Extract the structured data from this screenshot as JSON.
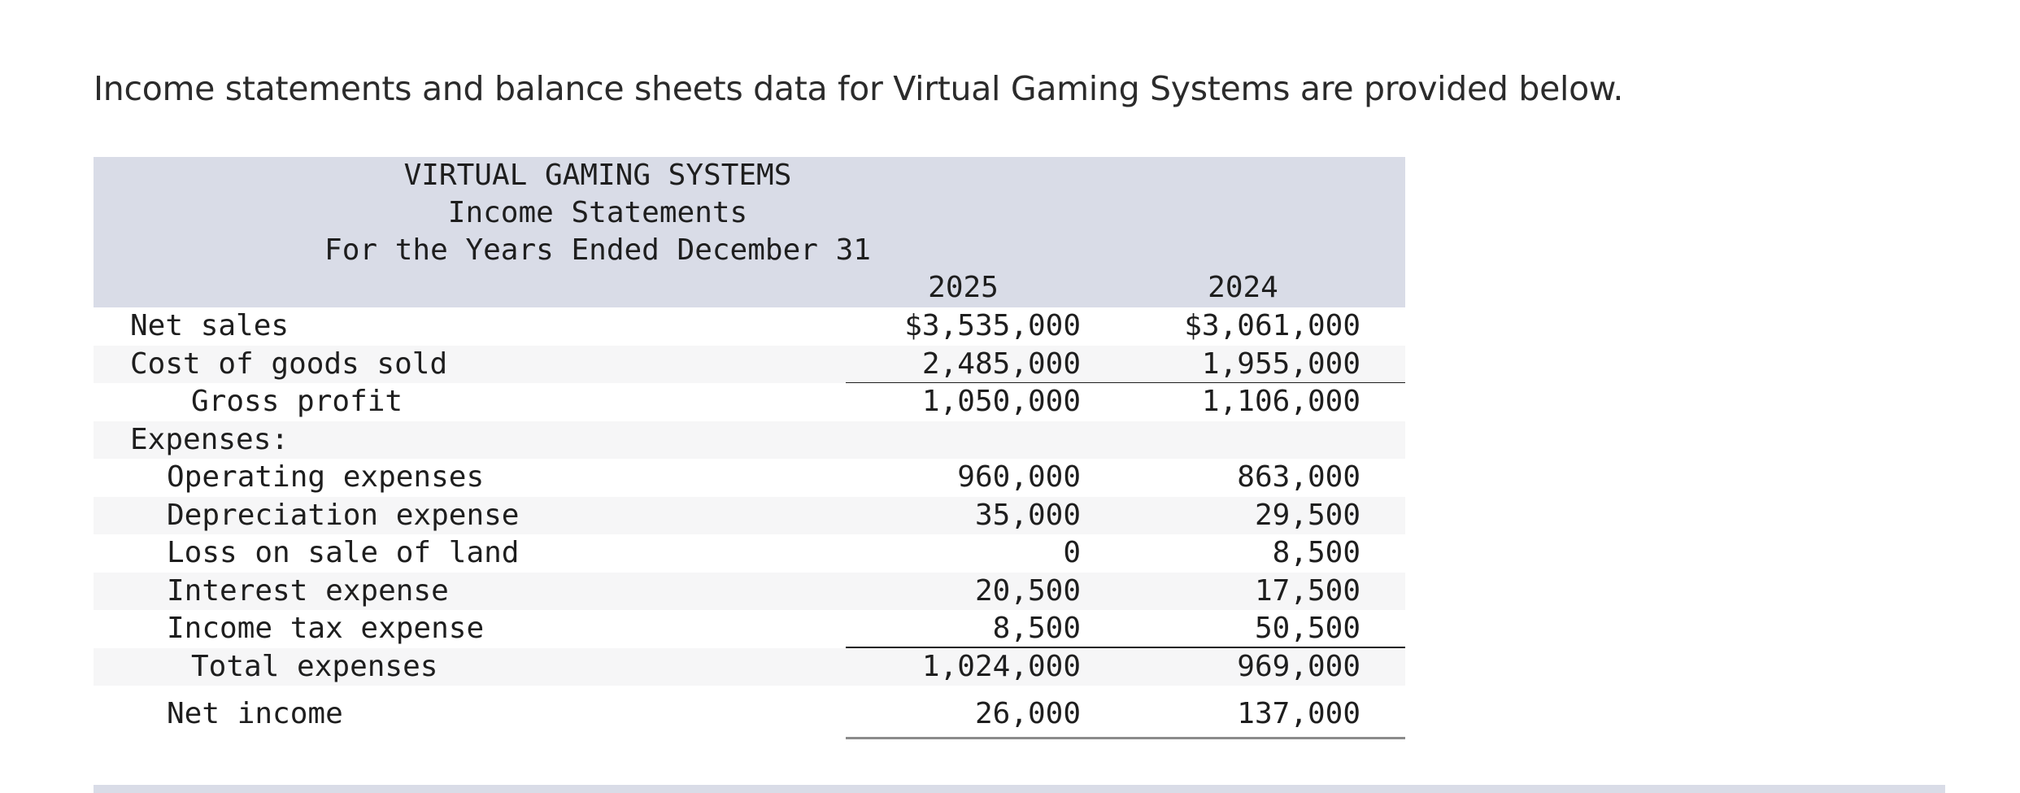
{
  "intro": "Income statements and balance sheets data for Virtual Gaming Systems are provided below.",
  "statement": {
    "company": "VIRTUAL GAMING SYSTEMS",
    "title": "Income Statements",
    "period": "For the Years Ended December 31",
    "years": [
      "2025",
      "2024"
    ],
    "rows": [
      {
        "label": "Net sales",
        "v2025": "$3,535,000",
        "v2024": "$3,061,000"
      },
      {
        "label": "Cost of goods sold",
        "v2025": "2,485,000",
        "v2024": "1,955,000"
      },
      {
        "label": "Gross profit",
        "v2025": "1,050,000",
        "v2024": "1,106,000"
      },
      {
        "label": "Expenses:",
        "v2025": "",
        "v2024": ""
      },
      {
        "label": "Operating expenses",
        "v2025": "960,000",
        "v2024": "863,000"
      },
      {
        "label": "Depreciation expense",
        "v2025": "35,000",
        "v2024": "29,500"
      },
      {
        "label": "Loss on sale of land",
        "v2025": "0",
        "v2024": "8,500"
      },
      {
        "label": "Interest expense",
        "v2025": "20,500",
        "v2024": "17,500"
      },
      {
        "label": "Income tax expense",
        "v2025": "8,500",
        "v2024": "50,500"
      },
      {
        "label": "Total expenses",
        "v2025": "1,024,000",
        "v2024": "969,000"
      },
      {
        "label": "Net income",
        "v2025": "26,000",
        "v2024": "137,000"
      }
    ]
  }
}
